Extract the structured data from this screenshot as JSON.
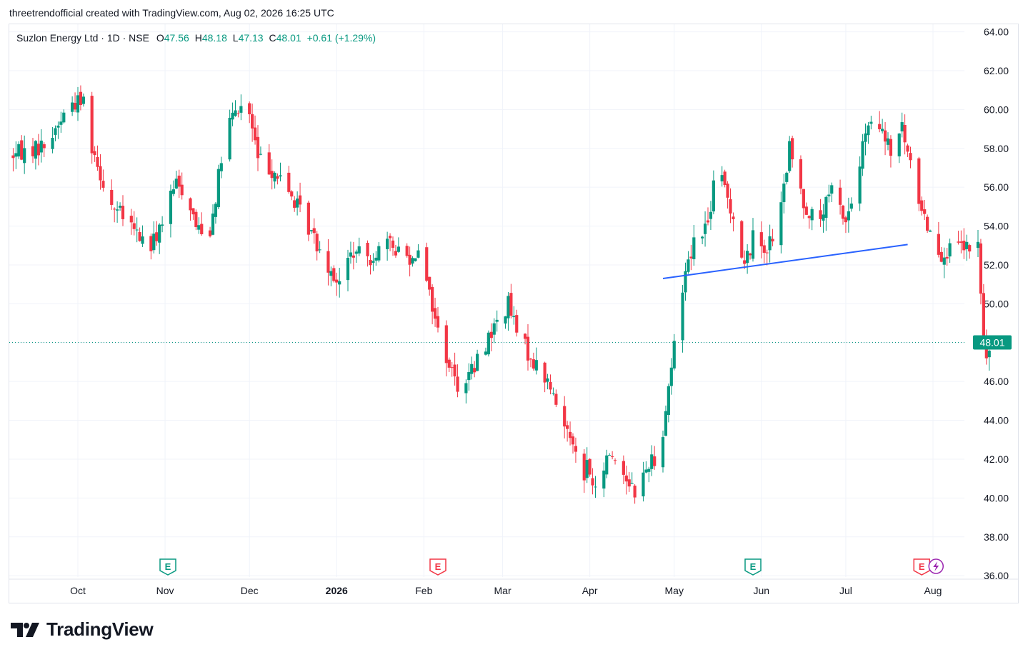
{
  "header": {
    "attribution": "threetrendofficial created with TradingView.com, Aug 02, 2026 16:25 UTC"
  },
  "legend": {
    "symbol": "Suzlon Energy Ltd · 1D · NSE",
    "open_label": "O",
    "open": "47.56",
    "high_label": "H",
    "high": "48.18",
    "low_label": "L",
    "low": "47.13",
    "close_label": "C",
    "close": "48.01",
    "change": "+0.61 (+1.29%)"
  },
  "footer": {
    "brand": "TradingView"
  },
  "colors": {
    "up": "#089981",
    "down": "#f23645",
    "trendline": "#2962ff",
    "grid": "#f0f3fa",
    "axis_text": "#131722"
  },
  "chart_data": {
    "type": "candlestick",
    "y_ticks": [
      "64.00",
      "62.00",
      "60.00",
      "58.00",
      "56.00",
      "54.00",
      "52.00",
      "50.00",
      "48.00",
      "46.00",
      "44.00",
      "42.00",
      "40.00",
      "38.00",
      "36.00"
    ],
    "ylim": [
      35.97,
      64.04
    ],
    "x_ticks": [
      {
        "label": "Oct",
        "date": "2025-10-01"
      },
      {
        "label": "Nov",
        "date": "2025-11-01"
      },
      {
        "label": "Dec",
        "date": "2025-12-01"
      },
      {
        "label": "2026",
        "date": "2026-01-01",
        "bold": true
      },
      {
        "label": "Feb",
        "date": "2026-02-01"
      },
      {
        "label": "Mar",
        "date": "2026-03-01"
      },
      {
        "label": "Apr",
        "date": "2026-04-01"
      },
      {
        "label": "May",
        "date": "2026-05-01"
      },
      {
        "label": "Jun",
        "date": "2026-06-01"
      },
      {
        "label": "Jul",
        "date": "2026-07-01"
      },
      {
        "label": "Aug",
        "date": "2026-08-01"
      }
    ],
    "last_price": "48.01",
    "earnings_markers": [
      {
        "date": "2025-11-02",
        "label": "E",
        "type": "up"
      },
      {
        "date": "2026-02-06",
        "label": "E",
        "type": "down"
      },
      {
        "date": "2026-05-29",
        "label": "E",
        "type": "up"
      },
      {
        "date": "2026-07-28",
        "label": "E",
        "type": "down"
      }
    ],
    "trendline": {
      "start": {
        "date": "2026-04-27",
        "price": 51.3
      },
      "end": {
        "date": "2026-07-23",
        "price": 53.05
      }
    },
    "waypoints": [
      [
        "2025-09-06",
        57.6
      ],
      [
        "2025-09-20",
        58.2
      ],
      [
        "2025-09-28",
        60.3
      ],
      [
        "2025-10-03",
        60.5
      ],
      [
        "2025-10-06",
        58.2
      ],
      [
        "2025-10-12",
        55.3
      ],
      [
        "2025-10-22",
        53.6
      ],
      [
        "2025-10-27",
        52.9
      ],
      [
        "2025-10-30",
        53.9
      ],
      [
        "2025-11-05",
        56.2
      ],
      [
        "2025-11-09",
        55.6
      ],
      [
        "2025-11-12",
        54.0
      ],
      [
        "2025-11-17",
        53.8
      ],
      [
        "2025-11-23",
        59.2
      ],
      [
        "2025-11-30",
        60.5
      ],
      [
        "2025-12-04",
        57.5
      ],
      [
        "2025-12-10",
        56.8
      ],
      [
        "2025-12-16",
        55.5
      ],
      [
        "2025-12-21",
        54.2
      ],
      [
        "2025-12-28",
        52.3
      ],
      [
        "2026-01-02",
        51.0
      ],
      [
        "2026-01-06",
        52.6
      ],
      [
        "2026-01-13",
        52.4
      ],
      [
        "2026-01-18",
        53.1
      ],
      [
        "2026-01-23",
        52.8
      ],
      [
        "2026-01-28",
        52.3
      ],
      [
        "2026-01-31",
        53.5
      ],
      [
        "2026-02-03",
        50.5
      ],
      [
        "2026-02-07",
        48.0
      ],
      [
        "2026-02-13",
        45.8
      ],
      [
        "2026-02-19",
        46.7
      ],
      [
        "2026-02-24",
        48.3
      ],
      [
        "2026-03-03",
        50.0
      ],
      [
        "2026-03-06",
        48.5
      ],
      [
        "2026-03-12",
        47.0
      ],
      [
        "2026-03-17",
        46.0
      ],
      [
        "2026-03-22",
        44.0
      ],
      [
        "2026-03-26",
        43.2
      ],
      [
        "2026-03-29",
        40.0
      ],
      [
        "2026-03-31",
        41.8
      ],
      [
        "2026-04-03",
        40.2
      ],
      [
        "2026-04-08",
        42.4
      ],
      [
        "2026-04-13",
        41.3
      ],
      [
        "2026-04-18",
        40.2
      ],
      [
        "2026-04-22",
        41.9
      ],
      [
        "2026-04-26",
        42.2
      ],
      [
        "2026-04-29",
        45.8
      ],
      [
        "2026-05-02",
        48.8
      ],
      [
        "2026-05-05",
        51.8
      ],
      [
        "2026-05-09",
        53.7
      ],
      [
        "2026-05-13",
        54.1
      ],
      [
        "2026-05-16",
        57.0
      ],
      [
        "2026-05-19",
        56.0
      ],
      [
        "2026-05-22",
        54.5
      ],
      [
        "2026-05-26",
        51.9
      ],
      [
        "2026-05-29",
        53.4
      ],
      [
        "2026-06-03",
        52.9
      ],
      [
        "2026-06-07",
        53.9
      ],
      [
        "2026-06-11",
        58.0
      ],
      [
        "2026-06-16",
        55.2
      ],
      [
        "2026-06-21",
        54.0
      ],
      [
        "2026-06-26",
        55.8
      ],
      [
        "2026-07-01",
        54.3
      ],
      [
        "2026-07-04",
        55.6
      ],
      [
        "2026-07-08",
        58.8
      ],
      [
        "2026-07-12",
        59.3
      ],
      [
        "2026-07-17",
        57.8
      ],
      [
        "2026-07-21",
        59.0
      ],
      [
        "2026-07-25",
        56.4
      ],
      [
        "2026-07-29",
        54.5
      ],
      [
        "2026-08-01",
        53.3
      ],
      [
        "2026-08-04",
        52.6
      ],
      [
        "2026-08-08",
        52.7
      ],
      [
        "2026-08-11",
        52.9
      ],
      [
        "2026-08-15",
        52.7
      ],
      [
        "2026-08-17",
        53.0
      ],
      [
        "2026-08-19",
        48.0
      ],
      [
        "2026-08-20",
        47.3
      ],
      [
        "2026-08-23",
        48.01
      ]
    ]
  }
}
